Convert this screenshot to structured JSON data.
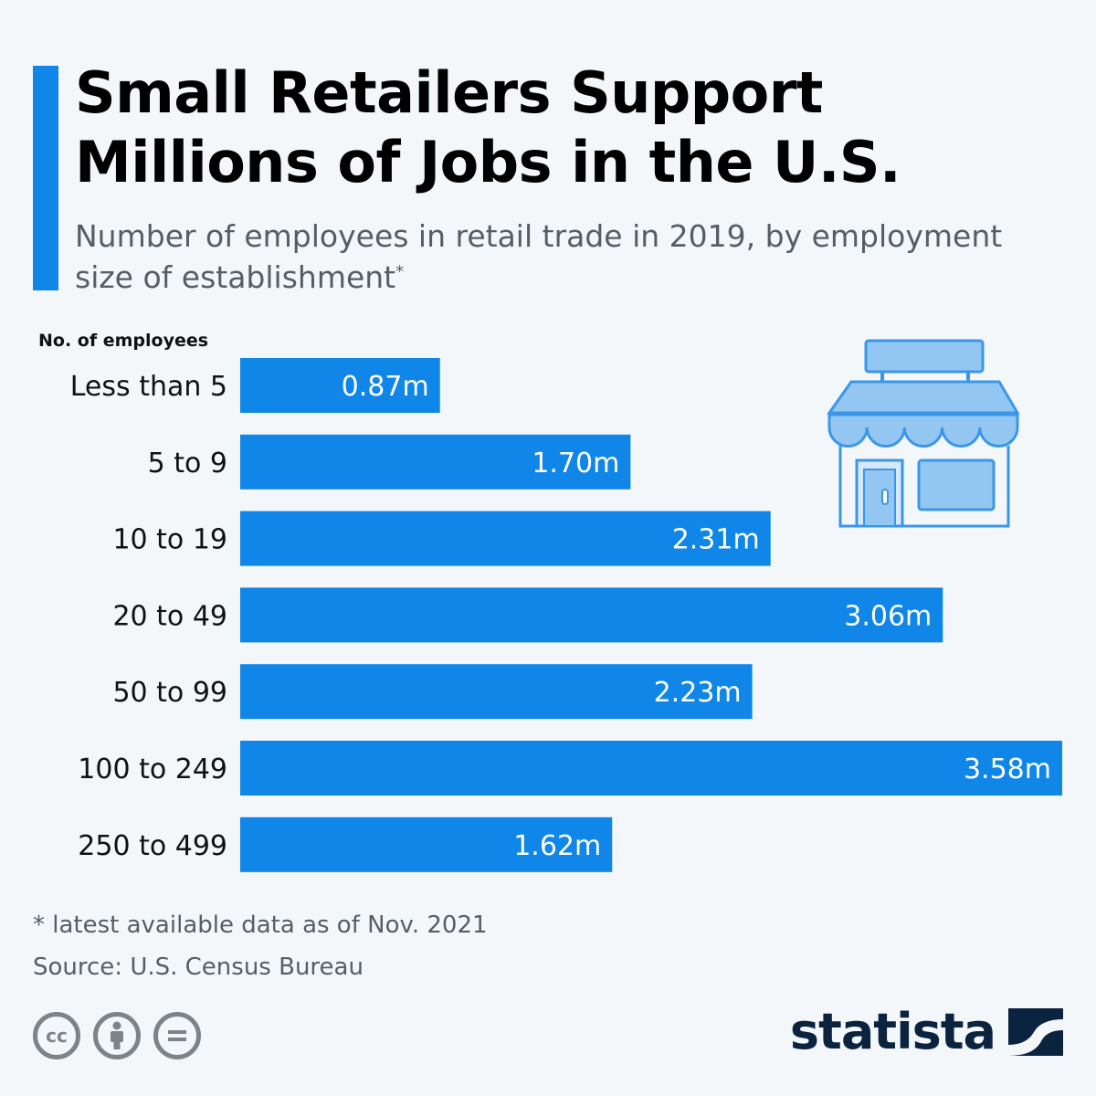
{
  "header": {
    "title": "Small Retailers Support Millions of Jobs in the U.S.",
    "subtitle_main": "Number of employees in retail trade in 2019, by employment size of establishment",
    "subtitle_mark": "*"
  },
  "colors": {
    "accent": "#0f86e8",
    "bar": "#0f86e8",
    "icon_fill": "#93c7f2",
    "icon_stroke": "#3a97e8",
    "brand": "#0c2340"
  },
  "chart_data": {
    "type": "bar",
    "orientation": "horizontal",
    "ylabel": "No. of employees",
    "categories": [
      "Less than 5",
      "5 to 9",
      "10 to 19",
      "20 to 49",
      "50 to 99",
      "100 to 249",
      "250 to 499"
    ],
    "values": [
      0.87,
      1.7,
      2.31,
      3.06,
      2.23,
      3.58,
      1.62
    ],
    "value_labels": [
      "0.87m",
      "1.70m",
      "2.31m",
      "3.06m",
      "2.23m",
      "3.58m",
      "1.62m"
    ],
    "xlim": [
      0,
      3.58
    ],
    "grid": false,
    "legend": "none"
  },
  "footer": {
    "note": "* latest available data as of Nov. 2021",
    "source": "Source: U.S. Census Bureau",
    "license_icons": [
      "cc-icon",
      "attribution-icon",
      "no-derivatives-icon"
    ],
    "license_cc": "cc"
  },
  "brand": {
    "name": "statista"
  }
}
